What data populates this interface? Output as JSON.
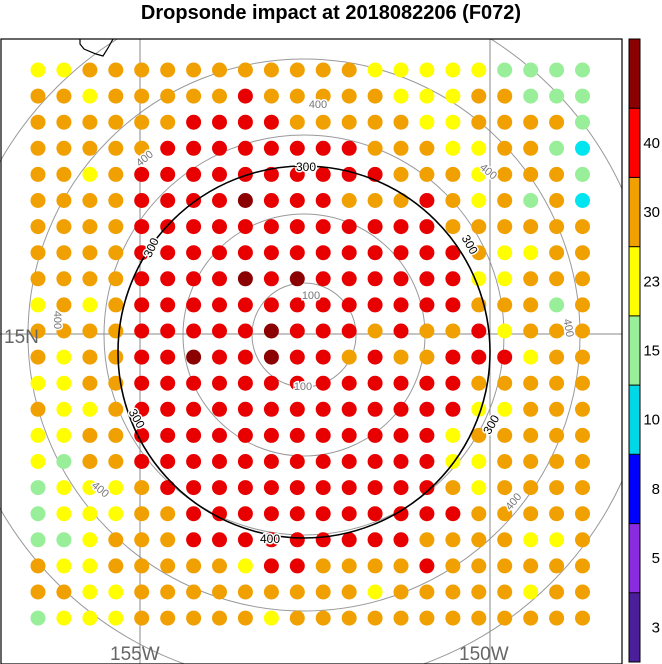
{
  "title": "Dropsonde impact at 2018082206 (F072)",
  "map": {
    "lat_labels": [
      {
        "text": "15N"
      }
    ],
    "lon_labels": [
      {
        "text": "155W"
      },
      {
        "text": "150W"
      }
    ],
    "range_ring_labels": [
      "100",
      "100",
      "300",
      "300",
      "300",
      "300",
      "300",
      "400",
      "400",
      "400",
      "400",
      "400",
      "400",
      "400",
      "400"
    ],
    "colors": {
      "background": "#ffffff",
      "coast": "#000000",
      "grid": "#888888",
      "ring": "#999999",
      "contour": "#000000"
    }
  },
  "colorbar": {
    "tick_labels": [
      "3",
      "5",
      "8",
      "10",
      "15",
      "23",
      "30",
      "40"
    ],
    "segments_bottom_to_top": [
      "#4b1f9a",
      "#8a2be2",
      "#0000ff",
      "#00d8e8",
      "#99ee99",
      "#ffff00",
      "#f0a000",
      "#ff0000",
      "#8b0000"
    ]
  },
  "dots": {
    "palette": {
      "D": "#8b0000",
      "R": "#e80000",
      "O": "#f0a000",
      "Y": "#ffff00",
      "G": "#99ee99",
      "C": "#00e5f0"
    },
    "rows": [
      "YYOOOOOOOOOOOYYYYYGGGG",
      "OOYOOOOOROOOOOYYYOOGGG",
      "OOOOOORRRROOOOOYYOOOOG",
      "OOOOORRRRRRRROOOYYOOGC",
      "OOYORRRRRRRRRROOOYOOOG",
      "OOOORRRRDRRROOOROYOGOC",
      "OOOORRRRRRRRRRRROOOOOO",
      "OOOORRRRRRRRRRRRROYYOO",
      "OOOORRRRDRDRRRRRRYYOOO",
      "YOYORRRRRRRRRRRRROOOGO",
      "OOOORRRRRDRRROROORYOOO",
      "OYOORRDRRDRROROORRRYOO",
      "YYOORRRRRRRRRRRRROOOOO",
      "OYYORRRRRRRRRRRRRYYOOO",
      "YYOORRRRRRRRRRRRYOOOOO",
      "YGOORRRRRRRRRRRRYYOOOO",
      "GYYYORRRRRRRRRRROYOOOO",
      "GYYYOORRRRRRRRRRROOOOO",
      "GGYOOORRRRRRRRROOOOYYO",
      "OYYOOOOOYRROOOOROOOOOO",
      "OOYYOOOOOOOOOYOOOOOYOO",
      "GYYYOOOOOYOOOOOOOOOOOO"
    ]
  }
}
